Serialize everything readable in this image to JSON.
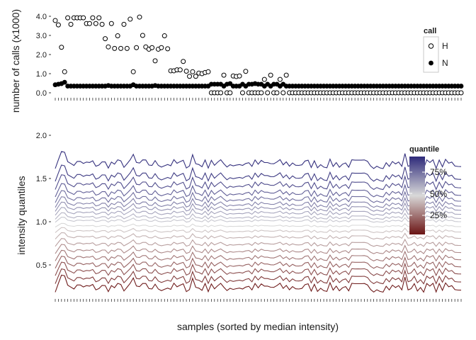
{
  "chart_data": [
    {
      "type": "scatter",
      "ylabel": "number of calls (x1000)",
      "ylim": [
        0,
        4.1
      ],
      "yticks": [
        "0.0",
        "1.0",
        "2.0",
        "3.0",
        "4.0"
      ],
      "n_samples": 131,
      "legend": {
        "title": "call",
        "placement": "top-right",
        "entries": [
          {
            "label": "H",
            "marker": "open-circle"
          },
          {
            "label": "N",
            "marker": "filled-circle"
          }
        ]
      },
      "series": [
        {
          "name": "H",
          "values": [
            3.78,
            3.55,
            2.38,
            1.1,
            3.92,
            3.58,
            3.92,
            3.92,
            3.92,
            3.92,
            3.62,
            3.62,
            3.92,
            3.62,
            3.92,
            3.58,
            2.83,
            2.4,
            3.62,
            2.32,
            2.98,
            2.32,
            3.58,
            2.32,
            3.85,
            1.1,
            2.36,
            3.96,
            3.0,
            2.4,
            2.28,
            2.36,
            1.67,
            2.28,
            2.36,
            2.98,
            2.3,
            1.15,
            1.15,
            1.2,
            1.2,
            1.64,
            1.13,
            0.86,
            1.1,
            0.86,
            1.03,
            1.0,
            1.06,
            1.1,
            0.0,
            0.0,
            0.0,
            0.0,
            0.92,
            0.0,
            0.0,
            0.88,
            0.85,
            0.88,
            0.0,
            1.12,
            0.0,
            0.0,
            0.0,
            0.0,
            0.0,
            0.7,
            0.0,
            0.92,
            0.0,
            0.0,
            0.7,
            0.0,
            0.92,
            0.0,
            0.0,
            0.0,
            0.0,
            0.0,
            0.0,
            0.0,
            0.0,
            0.0,
            0.0,
            0.0,
            0.0,
            0.0,
            0.0,
            0.0,
            0.0,
            0.0,
            0.0,
            0.0,
            0.0,
            0.0,
            0.0,
            0.0,
            0.0,
            0.0,
            0.0,
            0.0,
            0.0,
            0.0,
            0.0,
            0.0,
            0.0,
            0.0,
            0.0,
            0.0,
            0.0,
            0.0,
            0.0,
            0.0,
            0.0,
            0.0,
            0.0,
            0.0,
            0.0,
            0.0,
            0.0,
            0.0,
            0.0,
            0.0,
            0.0,
            0.0,
            0.0,
            0.0,
            0.0,
            0.0,
            0.0
          ]
        },
        {
          "name": "N",
          "values": [
            0.42,
            0.45,
            0.48,
            0.55,
            0.35,
            0.35,
            0.35,
            0.35,
            0.35,
            0.35,
            0.35,
            0.35,
            0.35,
            0.35,
            0.35,
            0.35,
            0.35,
            0.38,
            0.35,
            0.35,
            0.35,
            0.35,
            0.35,
            0.35,
            0.35,
            0.42,
            0.35,
            0.35,
            0.35,
            0.35,
            0.35,
            0.35,
            0.38,
            0.35,
            0.35,
            0.35,
            0.35,
            0.35,
            0.35,
            0.35,
            0.35,
            0.35,
            0.35,
            0.35,
            0.35,
            0.35,
            0.35,
            0.35,
            0.35,
            0.35,
            0.45,
            0.45,
            0.45,
            0.45,
            0.35,
            0.45,
            0.48,
            0.35,
            0.35,
            0.35,
            0.45,
            0.35,
            0.45,
            0.45,
            0.48,
            0.45,
            0.45,
            0.35,
            0.45,
            0.35,
            0.45,
            0.45,
            0.35,
            0.45,
            0.35,
            0.35,
            0.35,
            0.35,
            0.35,
            0.35,
            0.35,
            0.35,
            0.35,
            0.35,
            0.35,
            0.35,
            0.35,
            0.35,
            0.35,
            0.35,
            0.35,
            0.35,
            0.35,
            0.35,
            0.35,
            0.35,
            0.35,
            0.35,
            0.35,
            0.35,
            0.35,
            0.35,
            0.35,
            0.35,
            0.35,
            0.35,
            0.35,
            0.35,
            0.35,
            0.35,
            0.35,
            0.35,
            0.35,
            0.35,
            0.35,
            0.35,
            0.35,
            0.35,
            0.35,
            0.35,
            0.35,
            0.35,
            0.35,
            0.35,
            0.35,
            0.35,
            0.35,
            0.35,
            0.35,
            0.35,
            0.35
          ]
        }
      ]
    },
    {
      "type": "line",
      "ylabel": "intensity quantiles",
      "xlabel": "samples (sorted by median intensity)",
      "ylim": [
        0.12,
        2.04
      ],
      "yticks": [
        "0.5",
        "1.0",
        "1.5",
        "2.0"
      ],
      "n_samples": 131,
      "legend": {
        "title": "quantile",
        "placement": "top-right",
        "labels": [
          "75%",
          "50%",
          "25%"
        ],
        "colors": {
          "low": "#6b1414",
          "mid": "#d9d9d9",
          "high": "#2e2a7a"
        }
      },
      "quantile_curves": [
        {
          "quantile": 0.02,
          "base": 0.24
        },
        {
          "quantile": 0.1,
          "base": 0.33
        },
        {
          "quantile": 0.15,
          "base": 0.42
        },
        {
          "quantile": 0.2,
          "base": 0.5
        },
        {
          "quantile": 0.25,
          "base": 0.58
        },
        {
          "quantile": 0.3,
          "base": 0.66
        },
        {
          "quantile": 0.35,
          "base": 0.74
        },
        {
          "quantile": 0.4,
          "base": 0.82
        },
        {
          "quantile": 0.45,
          "base": 0.89
        },
        {
          "quantile": 0.5,
          "base": 0.95
        },
        {
          "quantile": 0.55,
          "base": 1.01
        },
        {
          "quantile": 0.6,
          "base": 1.05
        },
        {
          "quantile": 0.65,
          "base": 1.1
        },
        {
          "quantile": 0.7,
          "base": 1.15
        },
        {
          "quantile": 0.75,
          "base": 1.2
        },
        {
          "quantile": 0.8,
          "base": 1.26
        },
        {
          "quantile": 0.85,
          "base": 1.33
        },
        {
          "quantile": 0.9,
          "base": 1.42
        },
        {
          "quantile": 0.95,
          "base": 1.52
        },
        {
          "quantile": 0.98,
          "base": 1.67
        }
      ]
    }
  ]
}
